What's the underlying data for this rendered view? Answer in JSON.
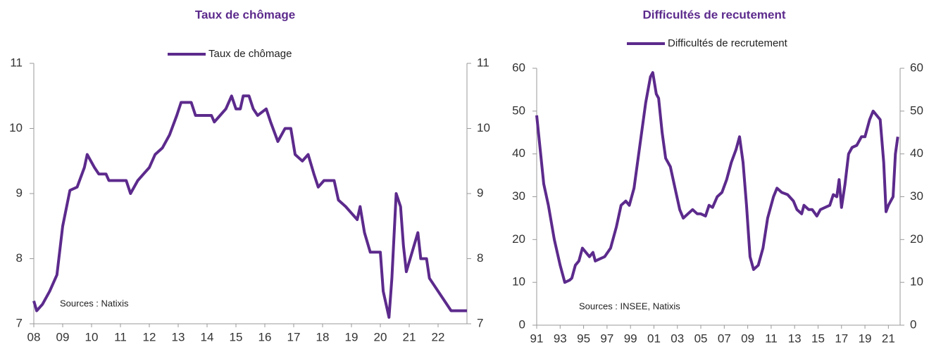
{
  "chart_data": [
    {
      "type": "line",
      "title": "Taux de chômage",
      "annotation": "Sources :  Natixis",
      "x": [
        2008.0,
        2008.1,
        2008.3,
        2008.55,
        2008.8,
        2009.0,
        2009.25,
        2009.5,
        2009.75,
        2009.85,
        2010.1,
        2010.25,
        2010.5,
        2010.6,
        2011.2,
        2011.35,
        2011.6,
        2011.8,
        2012.0,
        2012.2,
        2012.45,
        2012.7,
        2012.95,
        2013.1,
        2013.45,
        2013.6,
        2014.15,
        2014.25,
        2014.45,
        2014.65,
        2014.85,
        2015.0,
        2015.15,
        2015.25,
        2015.45,
        2015.6,
        2015.75,
        2016.05,
        2016.2,
        2016.45,
        2016.7,
        2016.9,
        2017.05,
        2017.3,
        2017.5,
        2017.7,
        2017.85,
        2018.05,
        2018.4,
        2018.55,
        2018.8,
        2019.0,
        2019.2,
        2019.3,
        2019.45,
        2019.65,
        2020.0,
        2020.1,
        2020.3,
        2020.4,
        2020.55,
        2020.7,
        2020.8,
        2020.9,
        2021.1,
        2021.3,
        2021.4,
        2021.6,
        2021.7,
        2022.45,
        2023.0
      ],
      "series": [
        {
          "name": "Taux de chômage",
          "color": "#5c2a8c",
          "values": [
            7.35,
            7.2,
            7.3,
            7.5,
            7.75,
            8.5,
            9.05,
            9.1,
            9.4,
            9.6,
            9.4,
            9.3,
            9.3,
            9.2,
            9.2,
            9.0,
            9.2,
            9.3,
            9.4,
            9.6,
            9.7,
            9.9,
            10.2,
            10.4,
            10.4,
            10.2,
            10.2,
            10.1,
            10.2,
            10.3,
            10.5,
            10.3,
            10.3,
            10.5,
            10.5,
            10.3,
            10.2,
            10.3,
            10.1,
            9.8,
            10.0,
            10.0,
            9.6,
            9.5,
            9.6,
            9.3,
            9.1,
            9.2,
            9.2,
            8.9,
            8.8,
            8.7,
            8.6,
            8.8,
            8.4,
            8.1,
            8.1,
            7.5,
            7.1,
            7.7,
            9.0,
            8.8,
            8.2,
            7.8,
            8.1,
            8.4,
            8.0,
            8.0,
            7.7,
            7.2,
            7.2
          ]
        }
      ],
      "xlim": [
        2008,
        2023
      ],
      "xticks": [
        {
          "value": 2008,
          "label": "08"
        },
        {
          "value": 2009,
          "label": "09"
        },
        {
          "value": 2010,
          "label": "10"
        },
        {
          "value": 2011,
          "label": "11"
        },
        {
          "value": 2012,
          "label": "12"
        },
        {
          "value": 2013,
          "label": "13"
        },
        {
          "value": 2014,
          "label": "14"
        },
        {
          "value": 2015,
          "label": "15"
        },
        {
          "value": 2016,
          "label": "16"
        },
        {
          "value": 2017,
          "label": "17"
        },
        {
          "value": 2018,
          "label": "18"
        },
        {
          "value": 2019,
          "label": "19"
        },
        {
          "value": 2020,
          "label": "20"
        },
        {
          "value": 2021,
          "label": "21"
        },
        {
          "value": 2022,
          "label": "22"
        }
      ],
      "ylim": [
        7,
        11
      ],
      "yticks": [
        7,
        8,
        9,
        10,
        11
      ],
      "y2lim": [
        7,
        11
      ],
      "y2ticks": [
        7,
        8,
        9,
        10,
        11
      ]
    },
    {
      "type": "line",
      "title": "Difficultés de recutement",
      "annotation": "Sources :  INSEE, Natixis",
      "x": [
        1991.0,
        1991.3,
        1991.6,
        1992.0,
        1992.5,
        1993.0,
        1993.4,
        1993.8,
        1994.0,
        1994.3,
        1994.6,
        1994.9,
        1995.2,
        1995.5,
        1995.8,
        1996.0,
        1996.4,
        1996.8,
        1997.3,
        1997.8,
        1998.2,
        1998.6,
        1998.9,
        1999.3,
        1999.8,
        2000.3,
        2000.7,
        2000.9,
        2001.2,
        2001.4,
        2001.7,
        2002.0,
        2002.4,
        2002.8,
        2003.2,
        2003.5,
        2003.9,
        2004.3,
        2004.7,
        2005.0,
        2005.4,
        2005.7,
        2006.0,
        2006.4,
        2006.8,
        2007.2,
        2007.6,
        2008.0,
        2008.3,
        2008.6,
        2008.9,
        2009.2,
        2009.5,
        2009.9,
        2010.3,
        2010.7,
        2011.2,
        2011.5,
        2011.9,
        2012.4,
        2012.9,
        2013.2,
        2013.6,
        2013.8,
        2014.2,
        2014.5,
        2014.9,
        2015.2,
        2015.6,
        2016.0,
        2016.3,
        2016.6,
        2016.8,
        2017.0,
        2017.3,
        2017.6,
        2017.9,
        2018.3,
        2018.7,
        2019.0,
        2019.4,
        2019.7,
        2020.0,
        2020.3,
        2020.6,
        2020.8,
        2021.0,
        2021.2,
        2021.4,
        2021.6,
        2021.8
      ],
      "series": [
        {
          "name": "Difficultés de recrutement",
          "color": "#5c2a8c",
          "values": [
            49,
            41,
            33,
            28,
            20,
            14,
            10,
            10.5,
            11,
            14,
            15,
            18,
            17,
            16,
            17,
            15,
            15.5,
            16,
            18,
            23,
            28,
            29,
            28,
            32,
            42,
            52,
            58,
            59,
            54,
            53,
            45,
            39,
            37,
            32,
            27,
            25,
            26,
            27,
            26,
            26,
            25.5,
            28,
            27.5,
            30,
            31,
            34,
            38,
            41,
            44,
            38,
            28,
            16,
            13,
            14,
            18,
            25,
            30,
            32,
            31,
            30.5,
            29,
            27,
            26,
            28,
            27,
            27,
            25.5,
            27,
            27.5,
            28,
            30.5,
            30,
            34,
            27.5,
            33,
            40,
            41.5,
            42,
            44,
            44,
            48,
            50,
            49,
            48,
            38,
            26.5,
            28,
            29,
            30,
            40,
            44
          ]
        }
      ],
      "xlim": [
        1991,
        2022
      ],
      "xticks": [
        {
          "value": 1991,
          "label": "91"
        },
        {
          "value": 1993,
          "label": "93"
        },
        {
          "value": 1995,
          "label": "95"
        },
        {
          "value": 1997,
          "label": "97"
        },
        {
          "value": 1999,
          "label": "99"
        },
        {
          "value": 2001,
          "label": "01"
        },
        {
          "value": 2003,
          "label": "03"
        },
        {
          "value": 2005,
          "label": "05"
        },
        {
          "value": 2007,
          "label": "07"
        },
        {
          "value": 2009,
          "label": "09"
        },
        {
          "value": 2011,
          "label": "11"
        },
        {
          "value": 2013,
          "label": "13"
        },
        {
          "value": 2015,
          "label": "15"
        },
        {
          "value": 2017,
          "label": "17"
        },
        {
          "value": 2019,
          "label": "19"
        },
        {
          "value": 2021,
          "label": "21"
        }
      ],
      "ylim": [
        0,
        60
      ],
      "yticks": [
        0,
        10,
        20,
        30,
        40,
        50,
        60
      ],
      "y2lim": [
        0,
        60
      ],
      "y2ticks": [
        0,
        10,
        20,
        30,
        40,
        50,
        60
      ]
    }
  ]
}
